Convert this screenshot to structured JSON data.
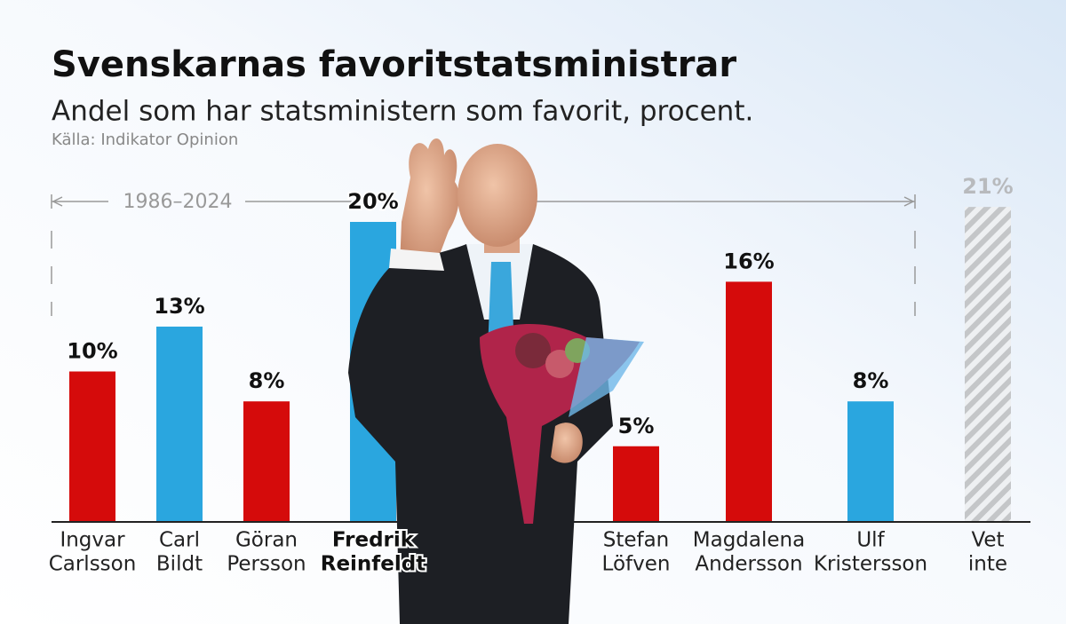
{
  "chart_data": {
    "type": "bar",
    "title": "Svenskarnas favoritstatsministrar",
    "subtitle": "Andel som har statsministern som favorit, procent.",
    "source": "Källa: Indikator Opinion",
    "annotation": "1986–2024",
    "categories": [
      [
        "Ingvar",
        "Carlsson"
      ],
      [
        "Carl",
        "Bildt"
      ],
      [
        "Göran",
        "Persson"
      ],
      [
        "Fredrik",
        "Reinfeldt"
      ],
      [
        "Stefan",
        "Löfven"
      ],
      [
        "Magdalena",
        "Andersson"
      ],
      [
        "Ulf",
        "Kristersson"
      ],
      [
        "Vet",
        "inte"
      ]
    ],
    "values": [
      10,
      13,
      8,
      20,
      5,
      16,
      8,
      21
    ],
    "value_labels": [
      "10%",
      "13%",
      "8%",
      "20%",
      "5%",
      "16%",
      "8%",
      "21%"
    ],
    "colors": [
      "#d50b0b",
      "#2aa6df",
      "#d50b0b",
      "#2aa6df",
      "#d50b0b",
      "#d50b0b",
      "#2aa6df",
      "#c4c6c8"
    ],
    "hatched": [
      false,
      false,
      false,
      false,
      false,
      false,
      false,
      true
    ],
    "highlight_index": 3,
    "ylim": [
      0,
      20
    ]
  }
}
